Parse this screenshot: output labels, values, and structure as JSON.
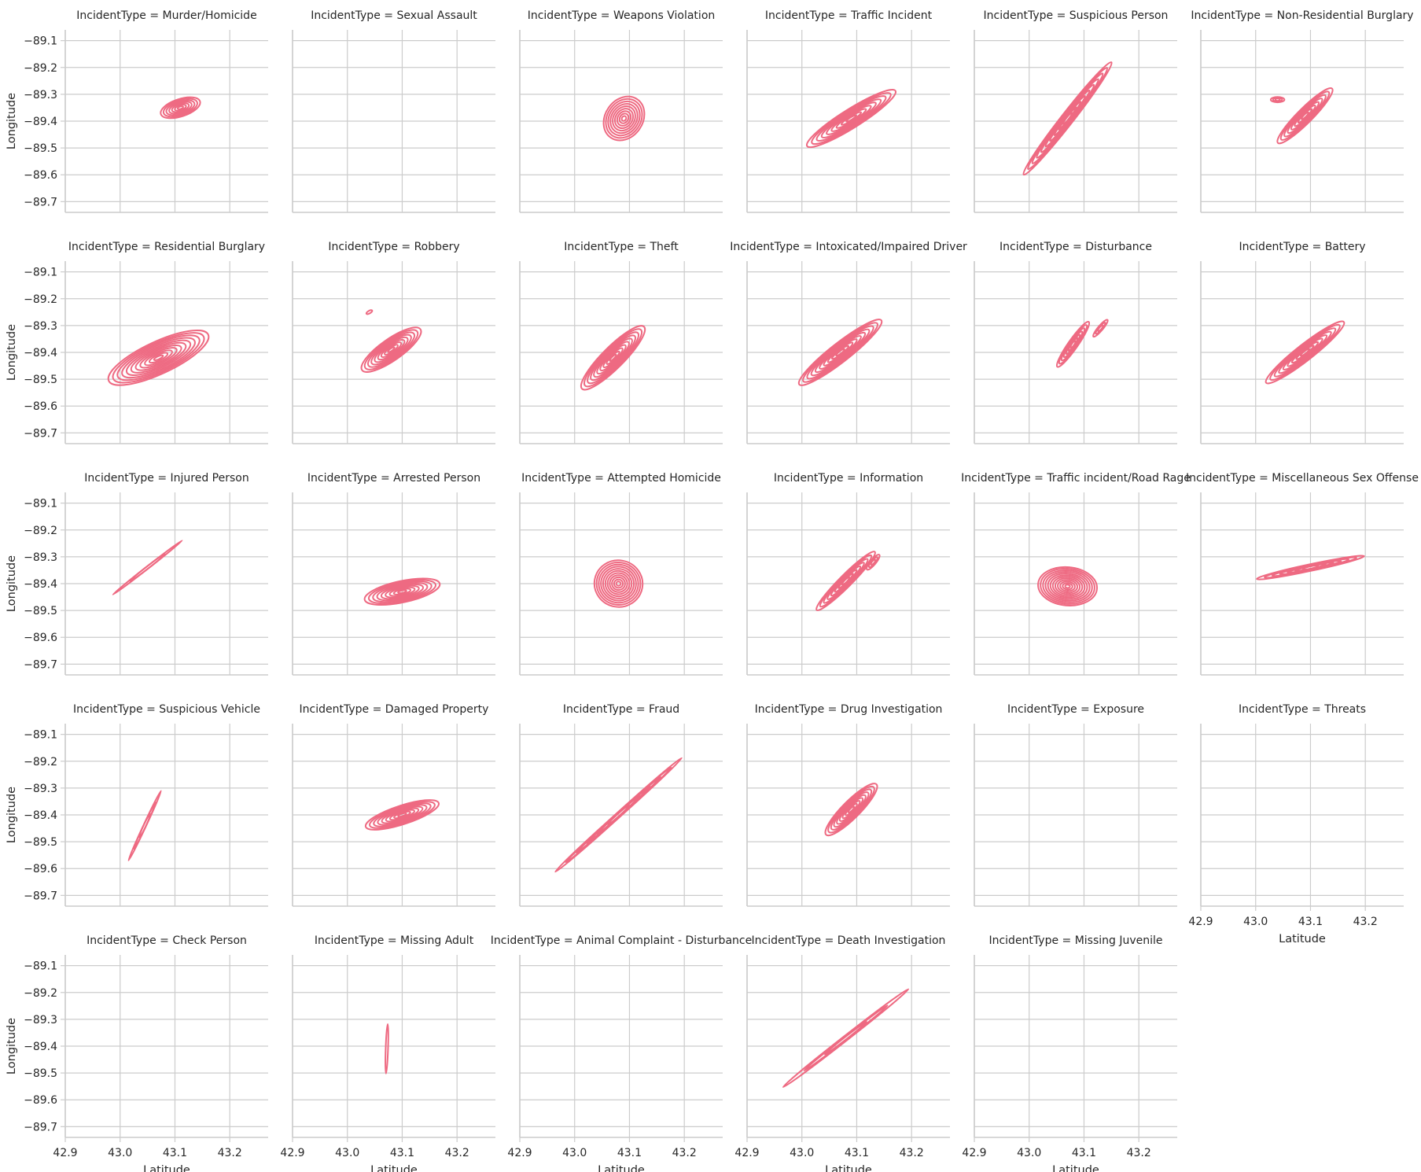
{
  "chart_data": {
    "type": "kde-contour-facet-grid",
    "facet_prefix": "IncidentType = ",
    "xlabel": "Latitude",
    "ylabel": "Longitude",
    "xlim": [
      42.9,
      43.27
    ],
    "ylim": [
      -89.74,
      -89.06
    ],
    "xticks": [
      "42.9",
      "43.0",
      "43.1",
      "43.2"
    ],
    "yticks": [
      "-89.1",
      "-89.2",
      "-89.3",
      "-89.4",
      "-89.5",
      "-89.6",
      "-89.7"
    ],
    "grid": true,
    "color": "#ee6a82",
    "grid_color": "#cccccc",
    "ncols": 6,
    "panels": [
      {
        "title": "Murder/Homicide",
        "blobs": [
          {
            "x": 43.11,
            "y": -89.35,
            "sx": 0.075,
            "sy": 0.065,
            "rot": 18,
            "levels": 7
          }
        ]
      },
      {
        "title": "Sexual Assault",
        "blobs": []
      },
      {
        "title": "Weapons Violation",
        "blobs": [
          {
            "x": 43.09,
            "y": -89.39,
            "sx": 0.085,
            "sy": 0.14,
            "rot": 55,
            "levels": 9
          }
        ]
      },
      {
        "title": "Traffic Incident",
        "blobs": [
          {
            "x": 43.09,
            "y": -89.39,
            "sx": 0.19,
            "sy": 0.07,
            "rot": 32,
            "levels": 9
          }
        ]
      },
      {
        "title": "Suspicious Person",
        "blobs": [
          {
            "x": 43.07,
            "y": -89.39,
            "sx": 0.26,
            "sy": 0.045,
            "rot": 52,
            "levels": 10
          }
        ]
      },
      {
        "title": "Non-Residential Burglary",
        "blobs": [
          {
            "x": 43.09,
            "y": -89.38,
            "sx": 0.14,
            "sy": 0.055,
            "rot": 45,
            "levels": 8
          },
          {
            "x": 43.04,
            "y": -89.32,
            "sx": 0.025,
            "sy": 0.02,
            "rot": 0,
            "levels": 3
          }
        ]
      },
      {
        "title": "Residential Burglary",
        "blobs": [
          {
            "x": 43.07,
            "y": -89.42,
            "sx": 0.2,
            "sy": 0.12,
            "rot": 25,
            "levels": 11
          }
        ]
      },
      {
        "title": "Robbery",
        "blobs": [
          {
            "x": 43.08,
            "y": -89.39,
            "sx": 0.13,
            "sy": 0.08,
            "rot": 35,
            "levels": 9
          },
          {
            "x": 43.04,
            "y": -89.25,
            "sx": 0.012,
            "sy": 0.01,
            "rot": 30,
            "levels": 1
          }
        ]
      },
      {
        "title": "Theft",
        "blobs": [
          {
            "x": 43.07,
            "y": -89.42,
            "sx": 0.16,
            "sy": 0.08,
            "rot": 45,
            "levels": 10
          }
        ]
      },
      {
        "title": "Intoxicated/Impaired Driver",
        "blobs": [
          {
            "x": 43.07,
            "y": -89.4,
            "sx": 0.19,
            "sy": 0.07,
            "rot": 38,
            "levels": 10
          }
        ]
      },
      {
        "title": "Disturbance",
        "blobs": [
          {
            "x": 43.08,
            "y": -89.37,
            "sx": 0.1,
            "sy": 0.035,
            "rot": 55,
            "levels": 7
          },
          {
            "x": 43.13,
            "y": -89.31,
            "sx": 0.04,
            "sy": 0.018,
            "rot": 50,
            "levels": 3
          }
        ]
      },
      {
        "title": "Battery",
        "blobs": [
          {
            "x": 43.09,
            "y": -89.4,
            "sx": 0.18,
            "sy": 0.06,
            "rot": 38,
            "levels": 9
          }
        ]
      },
      {
        "title": "Injured Person",
        "blobs": [
          {
            "x": 43.05,
            "y": -89.34,
            "sx": 0.16,
            "sy": 0.008,
            "rot": 38,
            "levels": 2
          }
        ]
      },
      {
        "title": "Arrested Person",
        "blobs": [
          {
            "x": 43.1,
            "y": -89.43,
            "sx": 0.14,
            "sy": 0.08,
            "rot": 12,
            "levels": 9
          }
        ]
      },
      {
        "title": "Attempted Homicide",
        "blobs": [
          {
            "x": 43.08,
            "y": -89.4,
            "sx": 0.085,
            "sy": 0.18,
            "rot": 80,
            "levels": 11
          }
        ]
      },
      {
        "title": "Information",
        "blobs": [
          {
            "x": 43.08,
            "y": -89.39,
            "sx": 0.15,
            "sy": 0.045,
            "rot": 45,
            "levels": 8
          },
          {
            "x": 43.13,
            "y": -89.32,
            "sx": 0.035,
            "sy": 0.02,
            "rot": 50,
            "levels": 3
          }
        ]
      },
      {
        "title": "Traffic incident/Road Rage",
        "blobs": [
          {
            "x": 43.07,
            "y": -89.41,
            "sx": 0.07,
            "sy": 0.22,
            "rot": 85,
            "levels": 12
          }
        ]
      },
      {
        "title": "Miscellaneous Sex Offense",
        "blobs": [
          {
            "x": 43.1,
            "y": -89.34,
            "sx": 0.2,
            "sy": 0.025,
            "rot": 12,
            "levels": 7
          }
        ]
      },
      {
        "title": "Suspicious Vehicle",
        "blobs": [
          {
            "x": 43.045,
            "y": -89.44,
            "sx": 0.14,
            "sy": 0.01,
            "rot": 65,
            "levels": 3
          }
        ]
      },
      {
        "title": "Damaged Property",
        "blobs": [
          {
            "x": 43.1,
            "y": -89.4,
            "sx": 0.14,
            "sy": 0.07,
            "rot": 18,
            "levels": 9
          }
        ]
      },
      {
        "title": "Fraud",
        "blobs": [
          {
            "x": 43.08,
            "y": -89.4,
            "sx": 0.31,
            "sy": 0.018,
            "rot": 42,
            "levels": 6
          }
        ]
      },
      {
        "title": "Drug Investigation",
        "blobs": [
          {
            "x": 43.09,
            "y": -89.38,
            "sx": 0.13,
            "sy": 0.065,
            "rot": 45,
            "levels": 9
          }
        ]
      },
      {
        "title": "Exposure",
        "blobs": []
      },
      {
        "title": "Threats",
        "blobs": []
      },
      {
        "title": "Check Person",
        "blobs": []
      },
      {
        "title": "Missing Adult",
        "blobs": [
          {
            "x": 43.072,
            "y": -89.41,
            "sx": 0.09,
            "sy": 0.004,
            "rot": 88,
            "levels": 1
          }
        ]
      },
      {
        "title": "Animal Complaint - Disturbance",
        "blobs": []
      },
      {
        "title": "Death Investigation",
        "blobs": [
          {
            "x": 43.08,
            "y": -89.37,
            "sx": 0.29,
            "sy": 0.018,
            "rot": 38,
            "levels": 3
          }
        ]
      },
      {
        "title": "Missing Juvenile",
        "blobs": []
      }
    ]
  }
}
